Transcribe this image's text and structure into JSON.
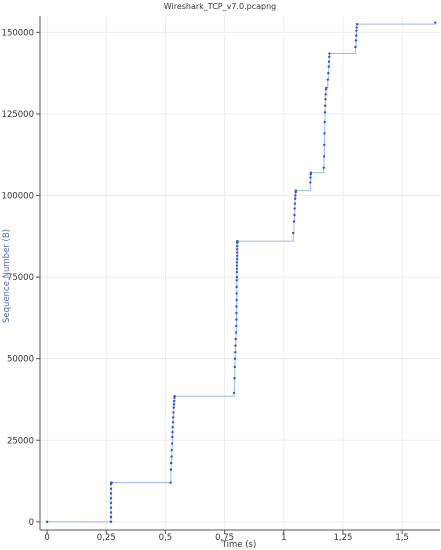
{
  "chart_data": {
    "type": "scatter",
    "title": "Wireshark_TCP_v7.0.pcapng",
    "xlabel": "Time (s)",
    "ylabel": "Sequence Number (B)",
    "xlim": [
      -0.03,
      1.66
    ],
    "ylim": [
      -2500,
      155000
    ],
    "x_ticks": [
      0,
      0.25,
      0.5,
      0.75,
      1,
      1.25,
      1.5
    ],
    "x_tick_labels": [
      "0",
      "0,25",
      "0,5",
      "0,75",
      "1",
      "1,25",
      "1,5"
    ],
    "y_ticks": [
      0,
      25000,
      50000,
      75000,
      100000,
      125000,
      150000
    ],
    "y_tick_labels": [
      "0",
      "25000",
      "50000",
      "75000",
      "100000",
      "125000",
      "150000"
    ],
    "grid": true,
    "colors": {
      "points": "#2f56c6",
      "line": "#9dbbe0",
      "grid": "#ececec",
      "axis": "#555555"
    },
    "series": [
      {
        "x": [
          0.0,
          0.27,
          0.27,
          0.27,
          0.27,
          0.27,
          0.27,
          0.27,
          0.27,
          0.27,
          0.271,
          0.272,
          0.272,
          0.273,
          0.522,
          0.523,
          0.524,
          0.526,
          0.527,
          0.528,
          0.529,
          0.53,
          0.531,
          0.532,
          0.533,
          0.534,
          0.535,
          0.536,
          0.537,
          0.538,
          0.539,
          0.79,
          0.792,
          0.793,
          0.794,
          0.795,
          0.796,
          0.797,
          0.798,
          0.799,
          0.8,
          0.8,
          0.8,
          0.801,
          0.801,
          0.801,
          0.801,
          0.802,
          0.802,
          0.802,
          0.802,
          0.802,
          0.803,
          0.803,
          0.803,
          0.803,
          0.803,
          0.803,
          0.804,
          0.804,
          0.804,
          0.804,
          1.04,
          1.043,
          1.045,
          1.046,
          1.047,
          1.048,
          1.049,
          1.05,
          1.051,
          1.112,
          1.113,
          1.114,
          1.114,
          1.169,
          1.17,
          1.171,
          1.172,
          1.173,
          1.174,
          1.175,
          1.176,
          1.177,
          1.178,
          1.18,
          1.186,
          1.188,
          1.19,
          1.191,
          1.192,
          1.193,
          1.303,
          1.305,
          1.306,
          1.307,
          1.308,
          1.31,
          1.64
        ],
        "y": [
          0,
          0,
          1448,
          2896,
          4344,
          5792,
          7240,
          8688,
          10136,
          11584,
          12000,
          12000,
          12000,
          12000,
          12000,
          16000,
          18000,
          20000,
          22000,
          24000,
          26000,
          27500,
          29000,
          30500,
          32000,
          33500,
          35000,
          36000,
          37000,
          38000,
          38500,
          39500,
          44000,
          47500,
          50000,
          52000,
          54000,
          56000,
          58000,
          60000,
          62000,
          64000,
          66000,
          68000,
          70000,
          72000,
          74000,
          75000,
          76500,
          77500,
          78500,
          79500,
          80500,
          81500,
          82500,
          83500,
          84500,
          85500,
          85700,
          85800,
          85900,
          86000,
          88500,
          92000,
          94000,
          96000,
          97500,
          99000,
          100000,
          101000,
          101500,
          104000,
          105500,
          106500,
          107000,
          108500,
          112000,
          115500,
          119000,
          122500,
          125500,
          127500,
          129500,
          131000,
          132500,
          133000,
          135500,
          137500,
          139500,
          141000,
          142500,
          143500,
          145500,
          147500,
          149000,
          150500,
          151500,
          152500,
          153000
        ]
      }
    ]
  }
}
